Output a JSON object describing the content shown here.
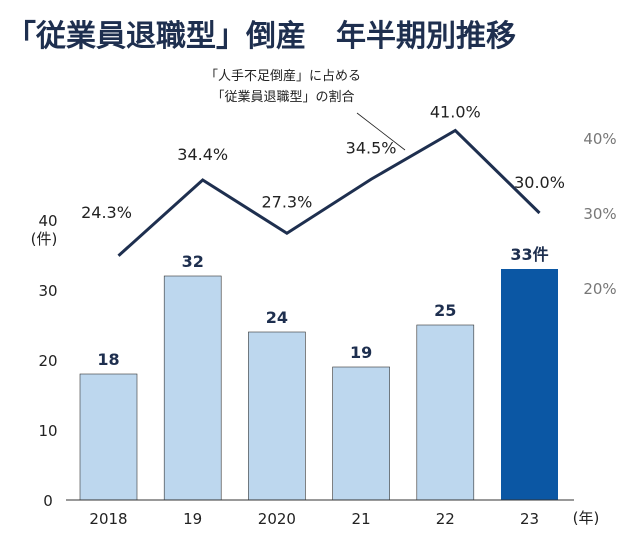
{
  "title": "「従業員退職型」倒産　年半期別推移",
  "annotation": [
    "「人手不足倒産」に占める",
    "「従業員退職型」の割合"
  ],
  "chart_data": {
    "type": "bar+line",
    "categories": [
      "2018",
      "19",
      "2020",
      "21",
      "22",
      "23"
    ],
    "x_unit": "(年)",
    "left_axis": {
      "ticks": [
        "0",
        "10",
        "20",
        "30",
        "40"
      ],
      "unit": "(件)",
      "range": [
        0,
        40
      ]
    },
    "right_axis": {
      "ticks": [
        "20%",
        "30%",
        "40%"
      ],
      "range": [
        20,
        40
      ]
    },
    "bars": {
      "values": [
        18,
        32,
        24,
        19,
        25,
        33
      ],
      "labels": [
        "18",
        "32",
        "24",
        "19",
        "25",
        "33件"
      ],
      "colors": [
        "#bdd7ee",
        "#bdd7ee",
        "#bdd7ee",
        "#bdd7ee",
        "#bdd7ee",
        "#0b57a4"
      ]
    },
    "line": {
      "values": [
        24.3,
        34.4,
        27.3,
        34.5,
        41.0,
        30.0
      ],
      "labels": [
        "24.3%",
        "34.4%",
        "27.3%",
        "34.5%",
        "41.0%",
        "30.0%"
      ],
      "color": "#1e2f4f"
    },
    "grid": false
  }
}
